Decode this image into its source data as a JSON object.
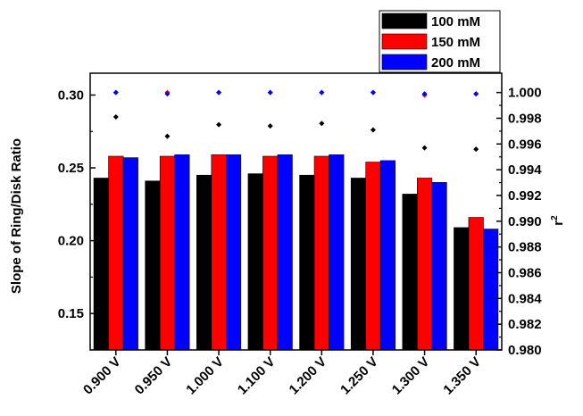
{
  "chart_data": {
    "type": "bar",
    "categories": [
      "0.900 V",
      "0.950 V",
      "1.000 V",
      "1.100 V",
      "1.200 V",
      "1.250 V",
      "1.300 V",
      "1.350 V"
    ],
    "series": [
      {
        "name": "100 mM",
        "color": "#000000",
        "values": [
          0.243,
          0.241,
          0.245,
          0.246,
          0.245,
          0.243,
          0.232,
          0.209
        ]
      },
      {
        "name": "150 mM",
        "color": "#ff0000",
        "values": [
          0.258,
          0.258,
          0.259,
          0.258,
          0.258,
          0.254,
          0.243,
          0.216
        ]
      },
      {
        "name": "200 mM",
        "color": "#0000ff",
        "values": [
          0.257,
          0.259,
          0.259,
          0.259,
          0.259,
          0.255,
          0.24,
          0.208
        ]
      }
    ],
    "r2_series": [
      {
        "name": "100 mM",
        "color": "#000000",
        "values": [
          0.9981,
          0.9966,
          0.9975,
          0.9974,
          0.9976,
          0.9971,
          0.9957,
          0.9956
        ]
      },
      {
        "name": "150 mM",
        "color": "#ff0000",
        "values": [
          1.0,
          1.0,
          1.0,
          1.0,
          1.0,
          1.0,
          0.9998,
          0.9999
        ]
      },
      {
        "name": "200 mM",
        "color": "#0000ff",
        "values": [
          1.0,
          0.9999,
          1.0,
          1.0,
          1.0,
          1.0,
          0.9999,
          0.9999
        ]
      }
    ],
    "ylabel": "Slope of Ring/Disk Ratio",
    "ylabel_right": "r",
    "ylabel_right_sup": "2",
    "ylim": [
      0.125,
      0.315
    ],
    "yticks": [
      "0.15",
      "0.20",
      "0.25",
      "0.30"
    ],
    "ylim_right": [
      0.98,
      1.0015
    ],
    "yticks_right": [
      "0.980",
      "0.982",
      "0.984",
      "0.986",
      "0.988",
      "0.990",
      "0.992",
      "0.994",
      "0.996",
      "0.998",
      "1.000"
    ],
    "legend_position": "top-right, outside plot",
    "grid": false
  }
}
